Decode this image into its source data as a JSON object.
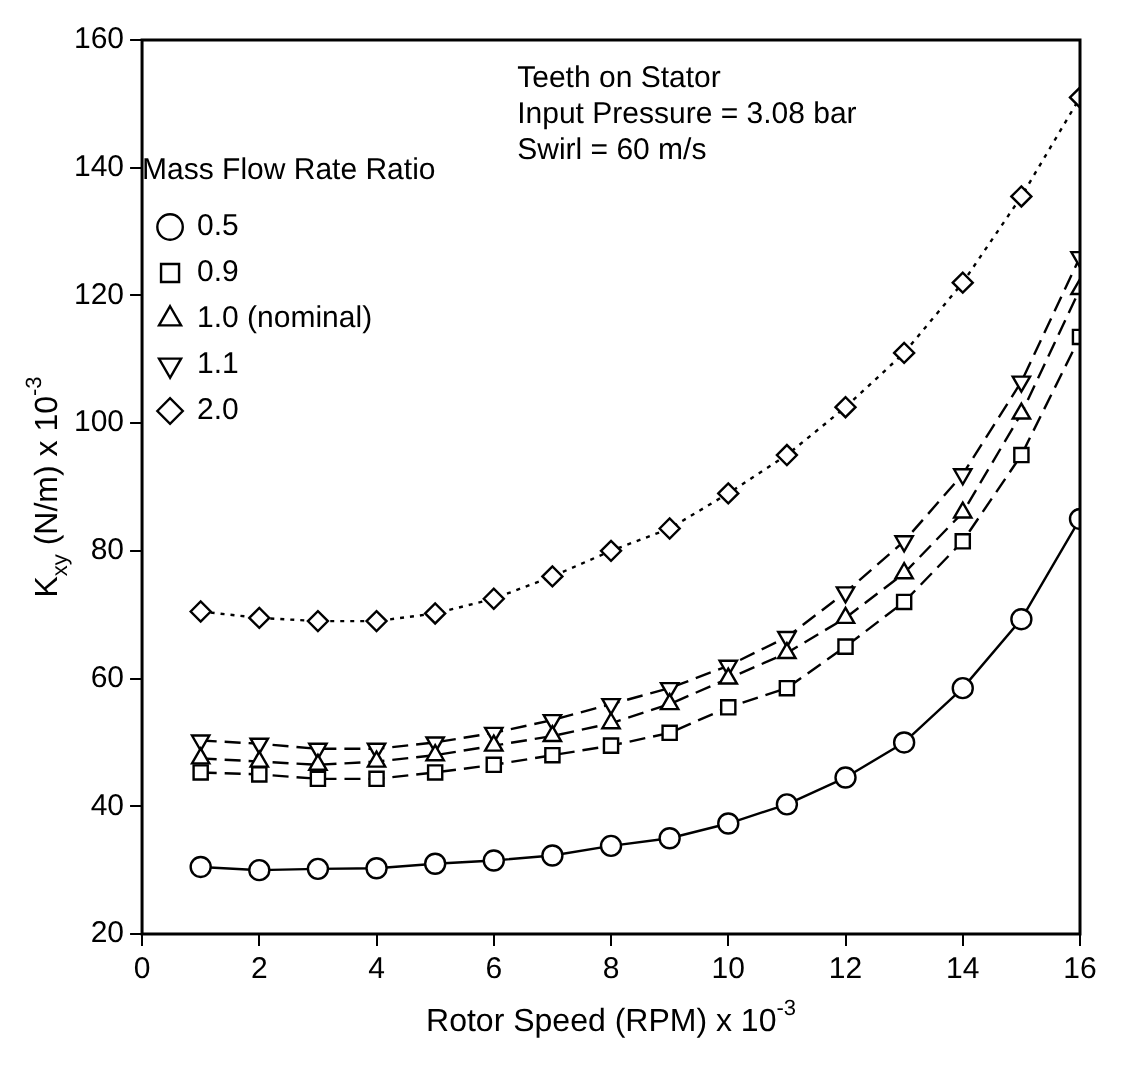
{
  "chart_data": {
    "type": "line",
    "xlabel": "Rotor Speed (RPM) x 10$^{-3}$",
    "ylabel": "K$_{xy}$ (N/m) x 10$^{-3}$",
    "legend_title": "Mass Flow Rate Ratio",
    "annotations": [
      "Teeth on Stator",
      "Input Pressure = 3.08 bar",
      "Swirl = 60 m/s"
    ],
    "x": [
      1,
      2,
      3,
      4,
      5,
      6,
      7,
      8,
      9,
      10,
      11,
      12,
      13,
      14,
      15,
      16
    ],
    "xlim": [
      0,
      16
    ],
    "xticks": [
      0,
      2,
      4,
      6,
      8,
      10,
      12,
      14,
      16
    ],
    "ylim": [
      20,
      160
    ],
    "yticks": [
      20,
      40,
      60,
      80,
      100,
      120,
      140,
      160
    ],
    "grid": false,
    "legend": "top left",
    "series": [
      {
        "name": "0.5",
        "color": "#000000",
        "marker": "circle",
        "line_style": "solid",
        "values": [
          30.5,
          30,
          30.2,
          30.3,
          31,
          31.5,
          32.3,
          33.8,
          35,
          37.3,
          40.3,
          44.5,
          50,
          58.5,
          69.3,
          85
        ]
      },
      {
        "name": "0.9",
        "color": "#000000",
        "marker": "square",
        "line_style": "dashed",
        "values": [
          45.3,
          45,
          44.3,
          44.3,
          45.3,
          46.5,
          48,
          49.5,
          51.5,
          55.5,
          58.5,
          65,
          72,
          81.5,
          95,
          113.5
        ]
      },
      {
        "name": "1.0 (nominal)",
        "color": "#000000",
        "marker": "triangle",
        "line_style": "dashed",
        "values": [
          47.5,
          47,
          46.5,
          47,
          48,
          49.5,
          51,
          53,
          56,
          60,
          64,
          69.5,
          76.5,
          86,
          101.5,
          121
        ]
      },
      {
        "name": "1.1",
        "color": "#000000",
        "marker": "triangle-down",
        "line_style": "dashed",
        "values": [
          50.3,
          49.8,
          49,
          49,
          50,
          51.5,
          53.5,
          56,
          58.5,
          62,
          66.5,
          73.5,
          81.5,
          92,
          106.5,
          126
        ]
      },
      {
        "name": "2.0",
        "color": "#000000",
        "marker": "diamond",
        "line_style": "dotted",
        "values": [
          70.5,
          69.5,
          69,
          69,
          70.2,
          72.5,
          76,
          80,
          83.5,
          89,
          95,
          102.5,
          111,
          122,
          135.5,
          151
        ]
      }
    ]
  }
}
